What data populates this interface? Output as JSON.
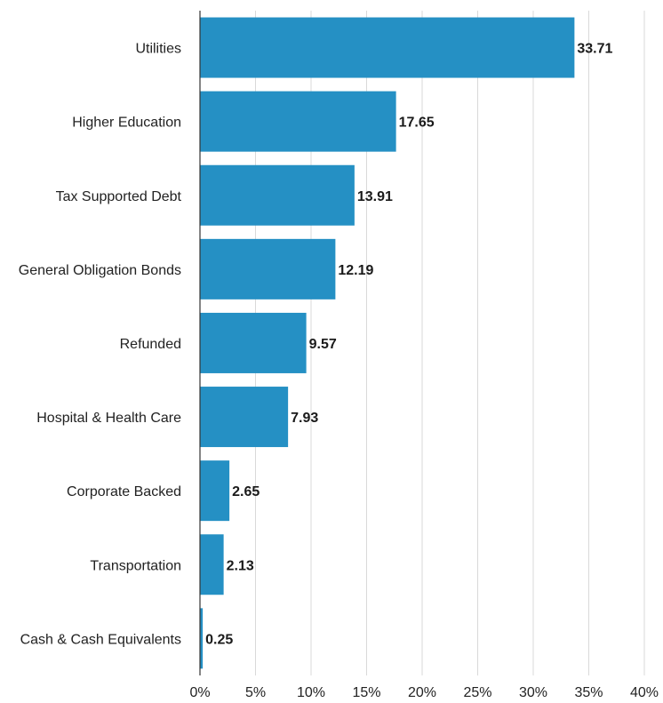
{
  "chart_data": {
    "type": "bar",
    "orientation": "horizontal",
    "categories": [
      "Utilities",
      "Higher Education",
      "Tax Supported Debt",
      "General Obligation Bonds",
      "Refunded",
      "Hospital & Health Care",
      "Corporate Backed",
      "Transportation",
      "Cash & Cash Equivalents"
    ],
    "values": [
      33.71,
      17.65,
      13.91,
      12.19,
      9.57,
      7.93,
      2.65,
      2.13,
      0.25
    ],
    "value_labels": [
      "33.71",
      "17.65",
      "13.91",
      "12.19",
      "9.57",
      "7.93",
      "2.65",
      "2.13",
      "0.25"
    ],
    "xlim": [
      0,
      40
    ],
    "xticks": [
      0,
      5,
      10,
      15,
      20,
      25,
      30,
      35,
      40
    ],
    "xtick_labels": [
      "0%",
      "5%",
      "10%",
      "15%",
      "20%",
      "25%",
      "30%",
      "35%",
      "40%"
    ],
    "grid": "vertical",
    "bar_color": "#2590c4",
    "title": "",
    "xlabel": "",
    "ylabel": ""
  }
}
